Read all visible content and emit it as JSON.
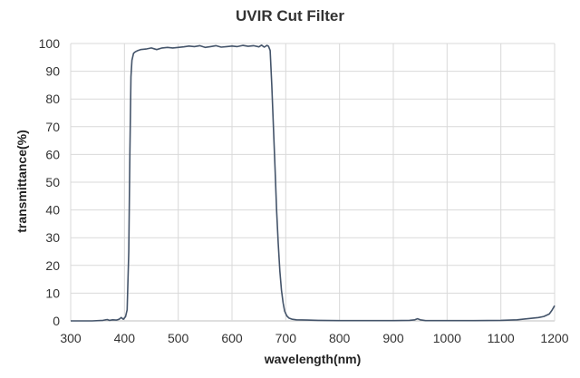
{
  "chart_data": {
    "type": "line",
    "title": "UVIR Cut Filter",
    "xlabel": "wavelength(nm)",
    "ylabel": "transmittance(%)",
    "xlim": [
      300,
      1200
    ],
    "ylim": [
      0,
      100
    ],
    "x_ticks": [
      300,
      400,
      500,
      600,
      700,
      800,
      900,
      1000,
      1100,
      1200
    ],
    "y_ticks": [
      0,
      10,
      20,
      30,
      40,
      50,
      60,
      70,
      80,
      90,
      100
    ],
    "grid": true,
    "legend": "none",
    "colors": {
      "line": "#44546a",
      "grid": "#d9d9d9",
      "axis": "#bfbfbf"
    },
    "series": [
      {
        "x": [
          300,
          340,
          360,
          368,
          372,
          378,
          385,
          390,
          394,
          398,
          402,
          405,
          408,
          410,
          412,
          414,
          417,
          420,
          425,
          430,
          440,
          450,
          455,
          460,
          470,
          480,
          490,
          500,
          510,
          520,
          530,
          540,
          550,
          560,
          570,
          580,
          590,
          600,
          610,
          620,
          630,
          640,
          650,
          655,
          660,
          665,
          668,
          671,
          674,
          677,
          680,
          683,
          686,
          689,
          692,
          695,
          698,
          702,
          706,
          712,
          720,
          740,
          760,
          800,
          850,
          900,
          930,
          940,
          945,
          950,
          960,
          1000,
          1050,
          1100,
          1130,
          1150,
          1160,
          1170,
          1180,
          1190,
          1195,
          1200
        ],
        "y": [
          0,
          0,
          0.2,
          0.5,
          0.2,
          0.4,
          0.3,
          0.6,
          1.2,
          0.6,
          1.5,
          4,
          25,
          60,
          88,
          94,
          96.5,
          97,
          97.5,
          97.8,
          98,
          98.4,
          98.1,
          97.8,
          98.4,
          98.6,
          98.4,
          98.6,
          98.8,
          99.1,
          98.9,
          99.2,
          98.6,
          98.9,
          99.2,
          98.7,
          98.9,
          99.1,
          98.9,
          99.3,
          99.0,
          99.2,
          98.8,
          99.4,
          98.7,
          99.3,
          99.0,
          97.5,
          85,
          70,
          55,
          40,
          28,
          18,
          11,
          6.5,
          3.5,
          1.8,
          1.0,
          0.6,
          0.4,
          0.3,
          0.2,
          0.1,
          0.1,
          0.1,
          0.2,
          0.4,
          0.8,
          0.4,
          0.1,
          0.1,
          0.1,
          0.2,
          0.4,
          0.8,
          1.0,
          1.2,
          1.6,
          2.5,
          3.8,
          5.5
        ]
      }
    ]
  }
}
